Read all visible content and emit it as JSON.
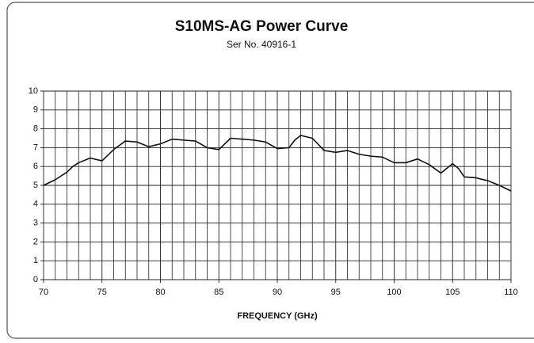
{
  "chart_data": {
    "type": "line",
    "title": "S10MS-AG  Power Curve",
    "subtitle": "Ser No. 40916-1",
    "x_label": "FREQUENCY (GHz)",
    "x": [
      70,
      71,
      72,
      72.5,
      73,
      74,
      75,
      76,
      77,
      78,
      79,
      80,
      81,
      82,
      83,
      84,
      85,
      86,
      87,
      88,
      89,
      90,
      91,
      91.5,
      92,
      93,
      94,
      95,
      96,
      97,
      98,
      99,
      100,
      101,
      102,
      103,
      104,
      105,
      105.5,
      106,
      107,
      108,
      109,
      110
    ],
    "series": [
      {
        "color": "#111111",
        "values": [
          5.0,
          5.3,
          5.7,
          6.0,
          6.2,
          6.45,
          6.3,
          6.9,
          7.35,
          7.3,
          7.05,
          7.2,
          7.45,
          7.4,
          7.35,
          7.0,
          6.9,
          7.5,
          7.45,
          7.4,
          7.3,
          6.95,
          7.0,
          7.4,
          7.65,
          7.5,
          6.85,
          6.75,
          6.85,
          6.65,
          6.55,
          6.5,
          6.2,
          6.2,
          6.4,
          6.1,
          5.65,
          6.15,
          5.9,
          5.45,
          5.4,
          5.25,
          5.0,
          4.7
        ]
      }
    ],
    "xlim": [
      70,
      110
    ],
    "xticks": [
      70,
      75,
      80,
      85,
      90,
      95,
      100,
      105,
      110
    ],
    "ylim": [
      0,
      10
    ],
    "yticks": [
      0,
      1,
      2,
      3,
      4,
      5,
      6,
      7,
      8,
      9,
      10
    ],
    "grid": true
  }
}
